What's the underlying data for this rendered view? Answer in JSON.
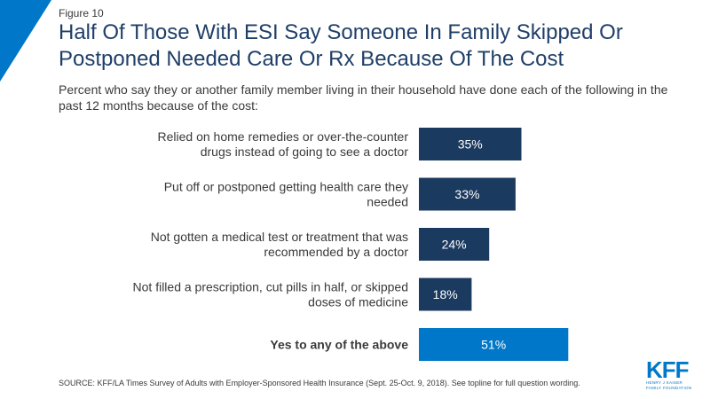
{
  "figure_label": "Figure 10",
  "title": "Half Of Those With ESI Say Someone In Family Skipped Or Postponed Needed Care Or Rx Because Of The Cost",
  "subtitle": "Percent who say they or another family member living in their household have done each of the following in the past 12 months because of the cost:",
  "chart_data": {
    "type": "bar",
    "orientation": "horizontal",
    "categories": [
      [
        "Relied on home remedies or over-the-counter",
        "drugs instead of going to see a doctor"
      ],
      [
        "Put off or postponed getting health care they",
        "needed"
      ],
      [
        "Not gotten a medical test or treatment that was",
        "recommended by a doctor"
      ],
      [
        "Not filled a prescription, cut pills in half, or skipped",
        "doses of medicine"
      ],
      [
        "Yes to any of the above"
      ]
    ],
    "values": [
      35,
      33,
      24,
      18,
      51
    ],
    "value_labels": [
      "35%",
      "33%",
      "24%",
      "18%",
      "51%"
    ],
    "bar_colors": [
      "#1b3a5f",
      "#1b3a5f",
      "#1b3a5f",
      "#1b3a5f",
      "#0077c8"
    ],
    "bold_categories": [
      false,
      false,
      false,
      false,
      true
    ],
    "xlim": [
      0,
      100
    ],
    "grid": false,
    "legend": "none"
  },
  "source": "SOURCE: KFF/LA Times Survey of Adults with Employer-Sponsored Health Insurance  (Sept. 25-Oct. 9, 2018). See topline for full question wording.",
  "logo": {
    "mark": "KFF",
    "lines": [
      "HENRY J KAISER",
      "FAMILY FOUNDATION"
    ]
  },
  "colors": {
    "accent": "#0077c8",
    "title": "#1f3f68",
    "bar_dark": "#1b3a5f"
  }
}
